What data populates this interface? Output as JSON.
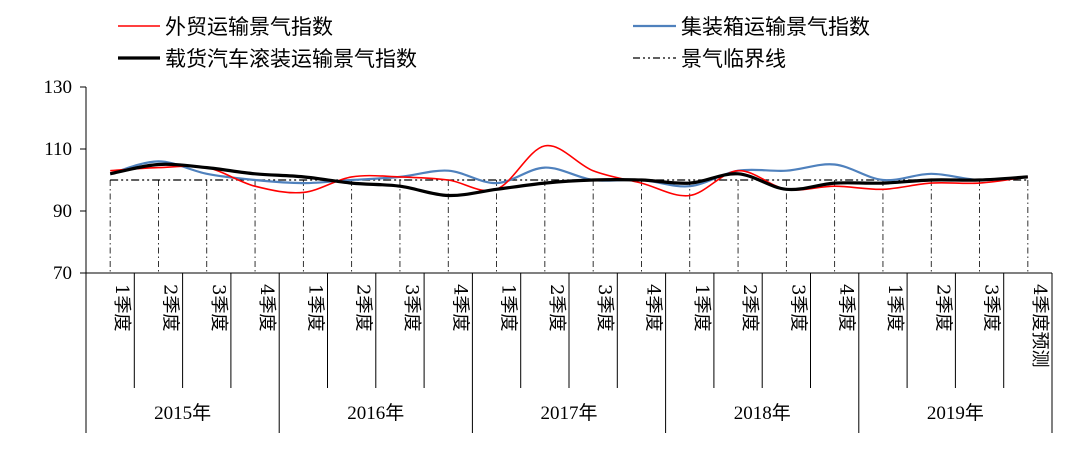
{
  "chart_data": {
    "type": "line",
    "ylim": [
      70,
      130
    ],
    "yticks": [
      70,
      90,
      110,
      130
    ],
    "categories": [
      "1季度",
      "2季度",
      "3季度",
      "4季度",
      "1季度",
      "2季度",
      "3季度",
      "4季度",
      "1季度",
      "2季度",
      "3季度",
      "4季度",
      "1季度",
      "2季度",
      "3季度",
      "4季度",
      "1季度",
      "2季度",
      "3季度",
      "4季度预测"
    ],
    "years": [
      "2015年",
      "2016年",
      "2017年",
      "2018年",
      "2019年"
    ],
    "threshold": 100,
    "legend": {
      "foreign_trade": "外贸运输景气指数",
      "container": "集装箱运输景气指数",
      "roro": "载货汽车滚装运输景气指数",
      "threshold": "景气临界线"
    },
    "series": [
      {
        "key": "foreign_trade",
        "name": "外贸运输景气指数",
        "color": "#ff0000",
        "width": 1.6,
        "values": [
          103,
          104,
          104,
          98,
          96,
          101,
          101,
          100,
          97,
          111,
          103,
          99,
          95,
          103,
          97,
          98,
          97,
          99,
          99,
          101
        ]
      },
      {
        "key": "container",
        "name": "集装箱运输景气指数",
        "color": "#4f81bd",
        "width": 2.2,
        "values": [
          102,
          106,
          102,
          100,
          99,
          100,
          101,
          103,
          99,
          104,
          100,
          100,
          98,
          103,
          103,
          105,
          100,
          102,
          100,
          101
        ]
      },
      {
        "key": "roro",
        "name": "载货汽车滚装运输景气指数",
        "color": "#000000",
        "width": 3.2,
        "values": [
          102,
          105,
          104,
          102,
          101,
          99,
          98,
          95,
          97,
          99,
          100,
          100,
          99,
          102,
          97,
          99,
          99,
          100,
          100,
          101
        ]
      }
    ]
  }
}
